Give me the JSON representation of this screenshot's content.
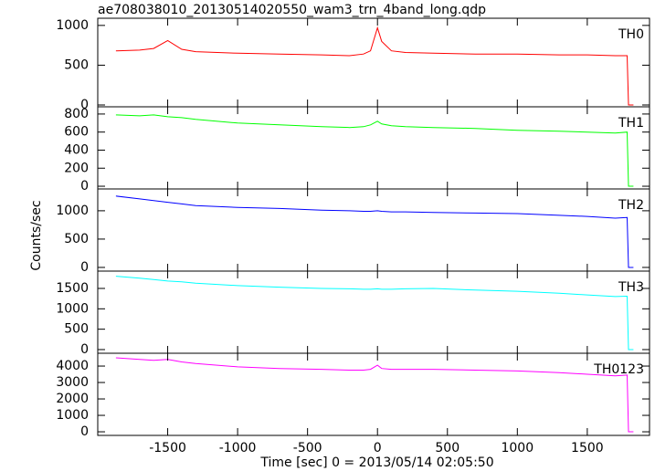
{
  "chart_data": [
    {
      "type": "line",
      "title": "ae708038010_20130514020550_wam3_trn_4band_long.qdp",
      "label": "TH0",
      "color": "#ff0000",
      "x": [
        -1870,
        -1700,
        -1600,
        -1500,
        -1400,
        -1300,
        -1000,
        -700,
        -400,
        -200,
        -100,
        -50,
        0,
        30,
        100,
        200,
        400,
        700,
        1000,
        1300,
        1500,
        1700,
        1785,
        1795,
        1830
      ],
      "values": [
        680,
        690,
        710,
        810,
        700,
        670,
        650,
        640,
        630,
        620,
        640,
        680,
        970,
        800,
        680,
        660,
        650,
        640,
        640,
        630,
        630,
        620,
        620,
        0,
        0
      ],
      "xlim": [
        -2000,
        1945
      ],
      "xticks": [
        -1500,
        -1000,
        -500,
        0,
        500,
        1000,
        1500
      ],
      "ylim": [
        -23,
        1090
      ],
      "yticks": [
        0,
        500,
        1000
      ]
    },
    {
      "type": "line",
      "label": "TH1",
      "color": "#00ff00",
      "x": [
        -1870,
        -1700,
        -1600,
        -1500,
        -1400,
        -1300,
        -1000,
        -700,
        -400,
        -200,
        -100,
        -50,
        0,
        30,
        100,
        200,
        400,
        700,
        1000,
        1300,
        1500,
        1700,
        1785,
        1795,
        1830
      ],
      "values": [
        790,
        780,
        790,
        770,
        760,
        740,
        700,
        680,
        660,
        650,
        660,
        680,
        720,
        690,
        670,
        660,
        650,
        640,
        620,
        610,
        600,
        590,
        600,
        0,
        0
      ],
      "xlim": [
        -2000,
        1945
      ],
      "xticks": [
        -1500,
        -1000,
        -500,
        0,
        500,
        1000,
        1500
      ],
      "ylim": [
        -30,
        880
      ],
      "yticks": [
        0,
        200,
        400,
        600,
        800
      ]
    },
    {
      "type": "line",
      "label": "TH2",
      "color": "#0000ff",
      "ylabel": "Counts/sec",
      "x": [
        -1870,
        -1700,
        -1600,
        -1500,
        -1400,
        -1300,
        -1000,
        -700,
        -400,
        -200,
        -100,
        -50,
        0,
        30,
        100,
        200,
        400,
        700,
        1000,
        1300,
        1500,
        1700,
        1785,
        1795,
        1830
      ],
      "values": [
        1260,
        1210,
        1180,
        1150,
        1120,
        1090,
        1060,
        1040,
        1010,
        1000,
        990,
        990,
        1000,
        990,
        980,
        980,
        970,
        960,
        950,
        920,
        900,
        870,
        880,
        0,
        0
      ],
      "xlim": [
        -2000,
        1945
      ],
      "xticks": [
        -1500,
        -1000,
        -500,
        0,
        500,
        1000,
        1500
      ],
      "ylim": [
        -65,
        1385
      ],
      "yticks": [
        0,
        500,
        1000
      ]
    },
    {
      "type": "line",
      "label": "TH3",
      "color": "#00ffff",
      "x": [
        -1870,
        -1700,
        -1600,
        -1500,
        -1400,
        -1300,
        -1000,
        -700,
        -400,
        -200,
        -100,
        -50,
        0,
        30,
        100,
        200,
        400,
        700,
        1000,
        1300,
        1500,
        1700,
        1785,
        1795,
        1830
      ],
      "values": [
        1800,
        1750,
        1720,
        1680,
        1660,
        1630,
        1570,
        1530,
        1500,
        1490,
        1480,
        1480,
        1490,
        1480,
        1480,
        1490,
        1500,
        1460,
        1430,
        1380,
        1340,
        1300,
        1310,
        0,
        0
      ],
      "xlim": [
        -2000,
        1945
      ],
      "xticks": [
        -1500,
        -1000,
        -500,
        0,
        500,
        1000,
        1500
      ],
      "ylim": [
        -90,
        1925
      ],
      "yticks": [
        0,
        500,
        1000,
        1500
      ]
    },
    {
      "type": "line",
      "label": "TH0123",
      "color": "#ff00ff",
      "xlabel": "Time [sec] 0 = 2013/05/14 02:05:50",
      "x": [
        -1870,
        -1700,
        -1600,
        -1500,
        -1400,
        -1300,
        -1000,
        -700,
        -400,
        -200,
        -100,
        -50,
        0,
        30,
        100,
        200,
        400,
        700,
        1000,
        1300,
        1500,
        1700,
        1785,
        1795,
        1830
      ],
      "values": [
        4500,
        4400,
        4350,
        4400,
        4250,
        4150,
        3950,
        3850,
        3800,
        3750,
        3750,
        3800,
        4050,
        3850,
        3800,
        3800,
        3800,
        3750,
        3700,
        3600,
        3500,
        3400,
        3450,
        0,
        0
      ],
      "xlim": [
        -2000,
        1945
      ],
      "xticks": [
        -1500,
        -1000,
        -500,
        0,
        500,
        1000,
        1500
      ],
      "ylim": [
        -220,
        4780
      ],
      "yticks": [
        0,
        1000,
        2000,
        3000,
        4000
      ]
    }
  ]
}
